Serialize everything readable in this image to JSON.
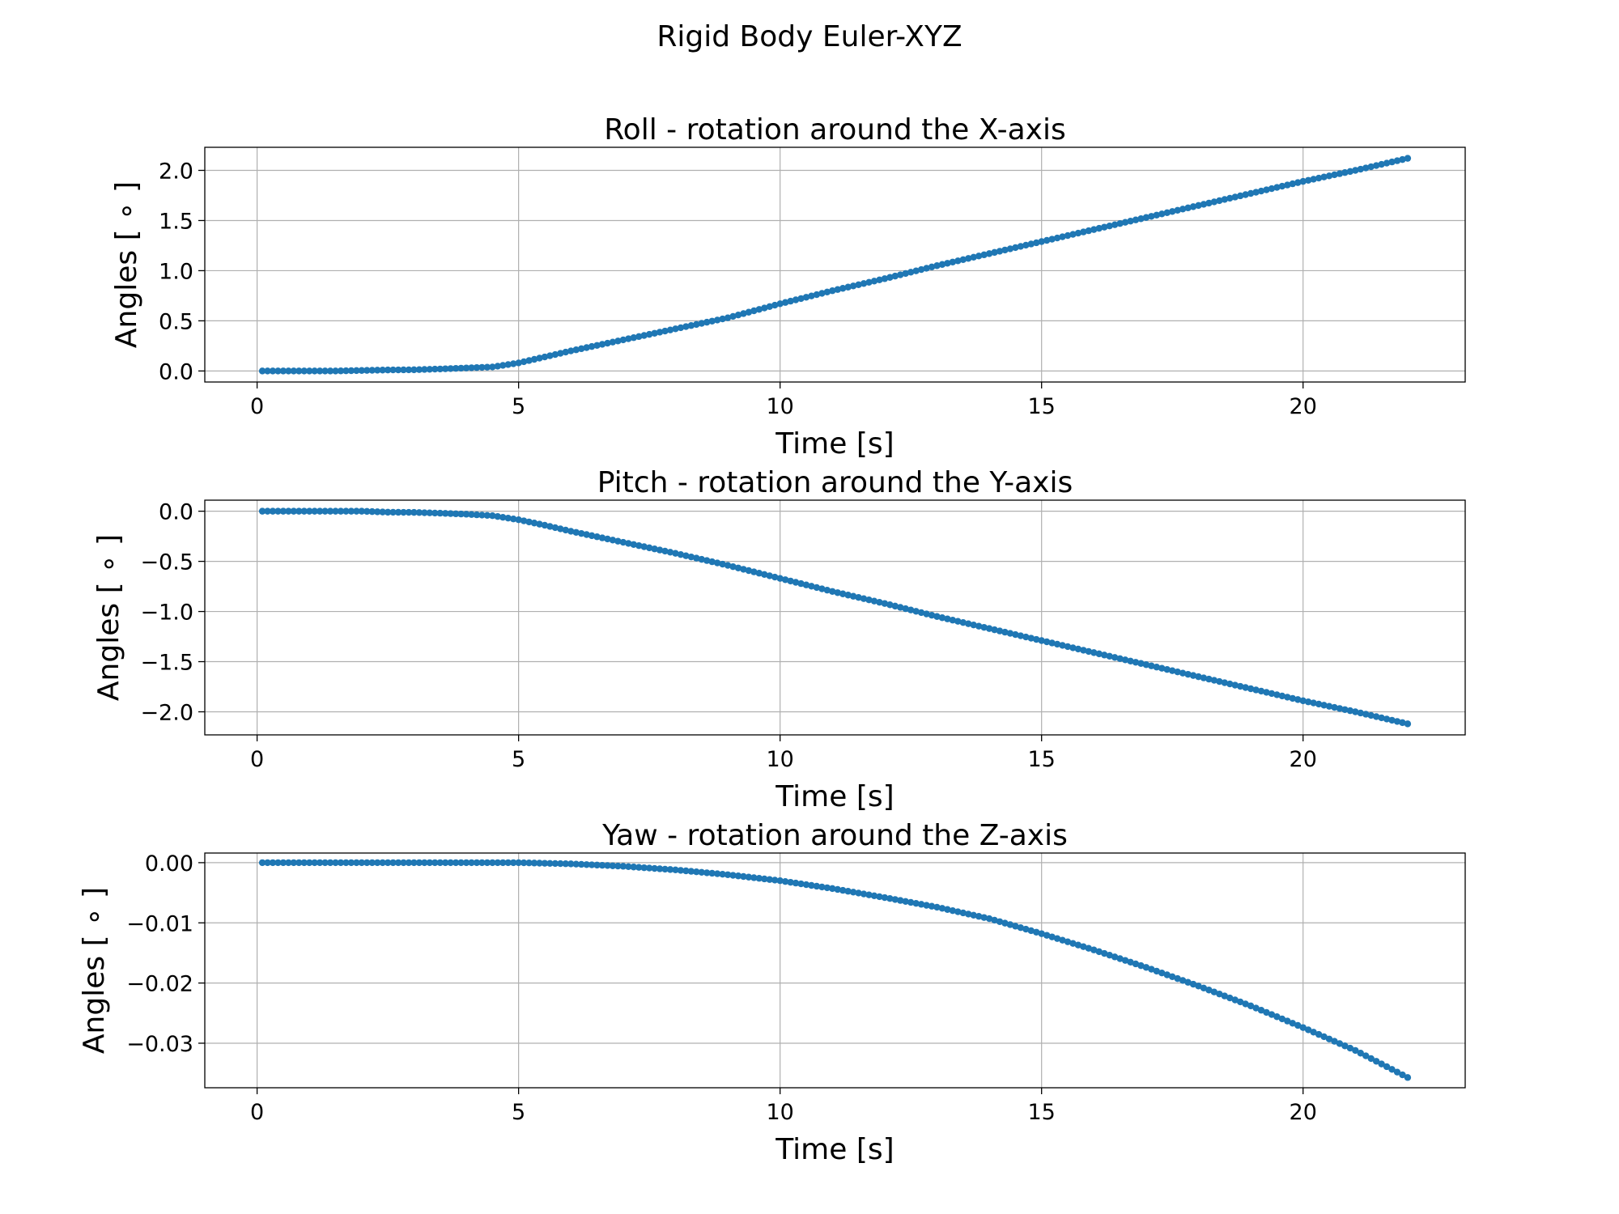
{
  "figure": {
    "suptitle": "Rigid Body Euler-XYZ"
  },
  "chart_data": [
    {
      "type": "scatter",
      "title": "Roll - rotation around the X-axis",
      "xlabel": "Time [s]",
      "ylabel": "Angles [ ∘ ]",
      "xlim": [
        -1.0,
        23.1
      ],
      "ylim": [
        -0.11,
        2.23
      ],
      "xticks": [
        0,
        5,
        10,
        15,
        20
      ],
      "xtick_labels": [
        "0",
        "5",
        "10",
        "15",
        "20"
      ],
      "yticks": [
        0.0,
        0.5,
        1.0,
        1.5,
        2.0
      ],
      "ytick_labels": [
        "0.0",
        "0.5",
        "1.0",
        "1.5",
        "2.0"
      ],
      "grid": true,
      "color": "#1f77b4",
      "series": [
        {
          "x": [
            0.1,
            0.5,
            1.0,
            1.5,
            2.0,
            2.5,
            3.0,
            3.5,
            4.0,
            4.5,
            5.0,
            5.5,
            6.0,
            7.0,
            8.0,
            9.0,
            10.0,
            11.0,
            12.0,
            13.0,
            14.0,
            15.0,
            16.0,
            17.0,
            18.0,
            19.0,
            20.0,
            21.0,
            22.0
          ],
          "y": [
            0.0,
            0.0,
            0.0,
            0.0,
            0.005,
            0.01,
            0.012,
            0.02,
            0.03,
            0.04,
            0.08,
            0.14,
            0.2,
            0.31,
            0.42,
            0.53,
            0.67,
            0.8,
            0.92,
            1.05,
            1.17,
            1.29,
            1.41,
            1.53,
            1.65,
            1.77,
            1.89,
            2.0,
            2.12
          ]
        }
      ]
    },
    {
      "type": "scatter",
      "title": "Pitch - rotation around the Y-axis",
      "xlabel": "Time [s]",
      "ylabel": "Angles [ ∘ ]",
      "xlim": [
        -1.0,
        23.1
      ],
      "ylim": [
        -2.23,
        0.11
      ],
      "xticks": [
        0,
        5,
        10,
        15,
        20
      ],
      "xtick_labels": [
        "0",
        "5",
        "10",
        "15",
        "20"
      ],
      "yticks": [
        0.0,
        -0.5,
        -1.0,
        -1.5,
        -2.0
      ],
      "ytick_labels": [
        "0.0",
        "−0.5",
        "−1.0",
        "−1.5",
        "−2.0"
      ],
      "grid": true,
      "color": "#1f77b4",
      "series": [
        {
          "x": [
            0.1,
            0.5,
            1.0,
            1.5,
            2.0,
            2.5,
            3.0,
            3.5,
            4.0,
            4.5,
            5.0,
            5.5,
            6.0,
            7.0,
            8.0,
            9.0,
            10.0,
            11.0,
            12.0,
            13.0,
            14.0,
            15.0,
            16.0,
            17.0,
            18.0,
            19.0,
            20.0,
            21.0,
            22.0
          ],
          "y": [
            0.0,
            0.0,
            0.0,
            0.0,
            0.0,
            -0.01,
            -0.012,
            -0.02,
            -0.03,
            -0.045,
            -0.085,
            -0.14,
            -0.2,
            -0.31,
            -0.42,
            -0.54,
            -0.67,
            -0.8,
            -0.92,
            -1.05,
            -1.17,
            -1.29,
            -1.41,
            -1.53,
            -1.65,
            -1.77,
            -1.89,
            -2.0,
            -2.12
          ]
        }
      ]
    },
    {
      "type": "scatter",
      "title": "Yaw - rotation around the Z-axis",
      "xlabel": "Time [s]",
      "ylabel": "Angles [ ∘ ]",
      "xlim": [
        -1.0,
        23.1
      ],
      "ylim": [
        -0.0374,
        0.0016
      ],
      "xticks": [
        0,
        5,
        10,
        15,
        20
      ],
      "xtick_labels": [
        "0",
        "5",
        "10",
        "15",
        "20"
      ],
      "yticks": [
        0.0,
        -0.01,
        -0.02,
        -0.03
      ],
      "ytick_labels": [
        "0.00",
        "−0.01",
        "−0.02",
        "−0.03"
      ],
      "grid": true,
      "color": "#1f77b4",
      "series": [
        {
          "x": [
            0.1,
            1.0,
            2.0,
            3.0,
            4.0,
            5.0,
            6.0,
            7.0,
            8.0,
            9.0,
            10.0,
            11.0,
            12.0,
            13.0,
            14.0,
            15.0,
            16.0,
            17.0,
            18.0,
            19.0,
            20.0,
            21.0,
            22.0
          ],
          "y": [
            0.0,
            0.0,
            0.0,
            0.0,
            0.0,
            0.0,
            -0.0002,
            -0.0006,
            -0.0012,
            -0.002,
            -0.003,
            -0.0043,
            -0.0058,
            -0.0074,
            -0.0093,
            -0.0118,
            -0.0145,
            -0.0174,
            -0.0205,
            -0.0238,
            -0.0274,
            -0.0312,
            -0.0357
          ]
        }
      ]
    }
  ]
}
